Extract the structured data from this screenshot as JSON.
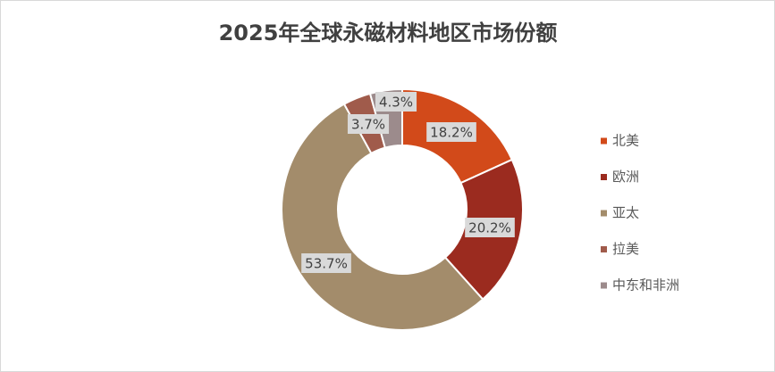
{
  "chart_data": {
    "type": "donut",
    "title": "2025年全球永磁材料地区市场份额",
    "categories": [
      "北美",
      "欧洲",
      "亚太",
      "拉美",
      "中东和非洲"
    ],
    "values": [
      18.2,
      20.2,
      53.7,
      3.7,
      4.3
    ],
    "value_labels": [
      "18.2%",
      "20.2%",
      "53.7%",
      "3.7%",
      "4.3%"
    ],
    "colors": [
      "#d24a1a",
      "#9b2b1f",
      "#a38c6b",
      "#a05b4b",
      "#9c8b8c"
    ],
    "legend": "right"
  }
}
